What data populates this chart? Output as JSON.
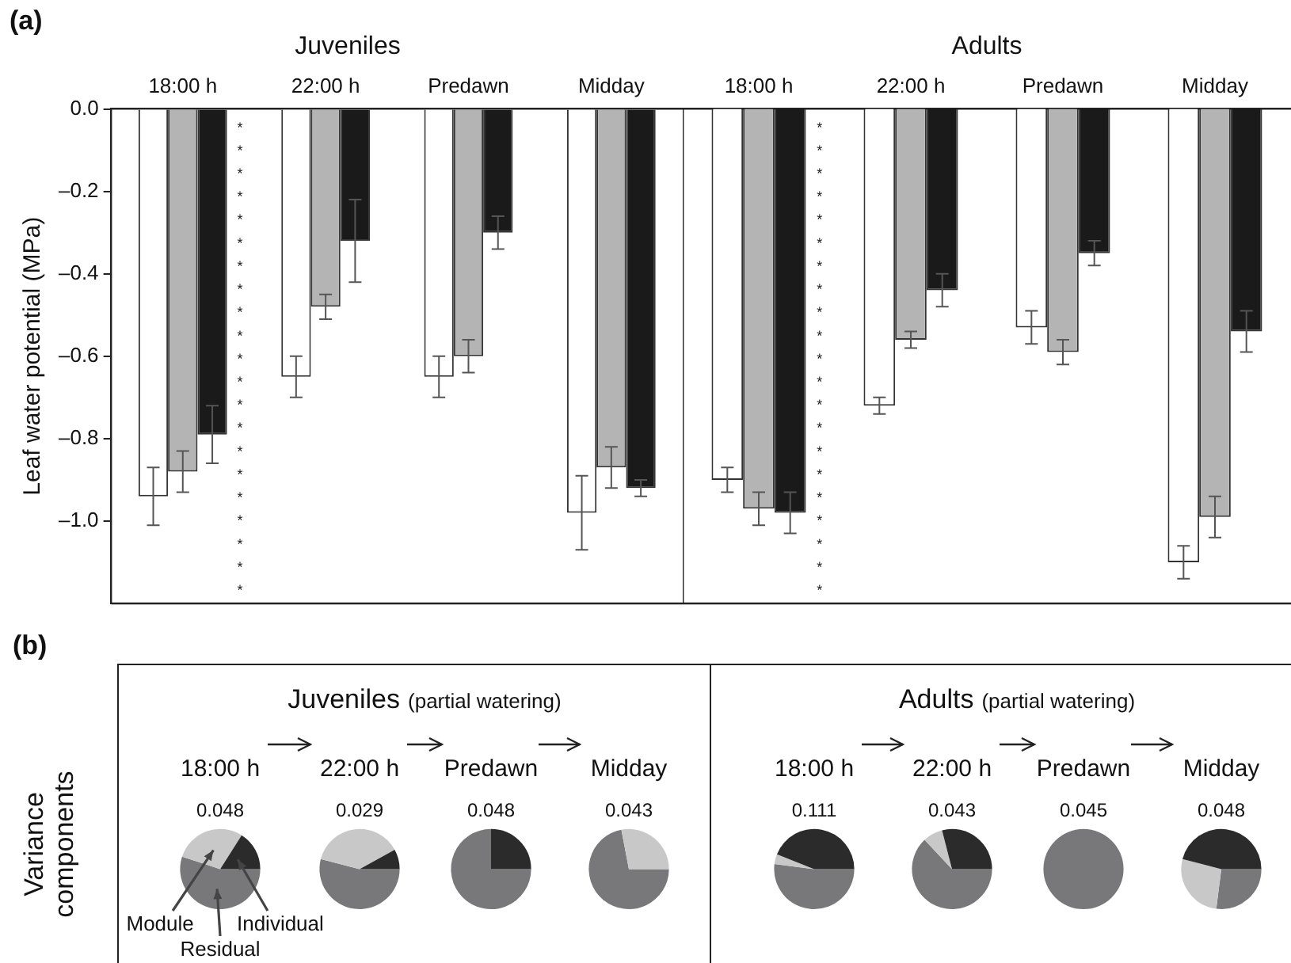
{
  "chart_data": [
    {
      "type": "bar",
      "title": "Juveniles",
      "ylabel": "Leaf water potential (MPa)",
      "categories": [
        "18:00 h",
        "22:00 h",
        "Predawn",
        "Midday"
      ],
      "series": [
        {
          "color": "#ffffff",
          "values": [
            -0.94,
            -0.65,
            -0.65,
            -0.98
          ],
          "errors": [
            0.07,
            0.05,
            0.05,
            0.09
          ]
        },
        {
          "color": "#b4b4b4",
          "values": [
            -0.88,
            -0.48,
            -0.6,
            -0.87
          ],
          "errors": [
            0.05,
            0.03,
            0.04,
            0.05
          ]
        },
        {
          "color": "#1a1a1a",
          "values": [
            -0.79,
            -0.32,
            -0.3,
            -0.92
          ],
          "errors": [
            0.07,
            0.1,
            0.04,
            0.02
          ]
        }
      ],
      "ylim": [
        -1.2,
        0
      ],
      "yticks": [
        {
          "value": 0,
          "label": "0.0"
        },
        {
          "value": -0.2,
          "label": "–0.2"
        },
        {
          "value": -0.4,
          "label": "–0.4"
        },
        {
          "value": -0.6,
          "label": "–0.6"
        },
        {
          "value": -0.8,
          "label": "–0.8"
        },
        {
          "value": -1,
          "label": "–1.0"
        }
      ],
      "annotations": [
        "(a)",
        "*********************"
      ]
    },
    {
      "type": "bar",
      "title": "Adults",
      "categories": [
        "18:00 h",
        "22:00 h",
        "Predawn",
        "Midday"
      ],
      "series": [
        {
          "color": "#ffffff",
          "values": [
            -0.9,
            -0.72,
            -0.53,
            -1.1
          ],
          "errors": [
            0.03,
            0.02,
            0.04,
            0.04
          ]
        },
        {
          "color": "#b4b4b4",
          "values": [
            -0.97,
            -0.56,
            -0.59,
            -0.99
          ],
          "errors": [
            0.04,
            0.02,
            0.03,
            0.05
          ]
        },
        {
          "color": "#1a1a1a",
          "values": [
            -0.98,
            -0.44,
            -0.35,
            -0.54
          ],
          "errors": [
            0.05,
            0.04,
            0.03,
            0.05
          ]
        }
      ],
      "ylim": [
        -1.2,
        0
      ],
      "tick_labels": "x",
      "annotations": [
        "*********************"
      ]
    },
    {
      "type": "pie",
      "title": "18:00 h",
      "subtitle": "0.048",
      "categories": [
        "Residual",
        "Module",
        "Individual"
      ],
      "values": [
        55,
        29,
        16
      ],
      "colors": [
        "#78787a",
        "#c8c8c8",
        "#2b2b2b"
      ],
      "annotations": [
        "(b)",
        "Variance components",
        "Juveniles",
        "(partial watering)"
      ]
    },
    {
      "type": "pie",
      "title": "22:00 h",
      "subtitle": "0.029",
      "categories": [
        null,
        null,
        null
      ],
      "values": [
        54,
        38,
        8
      ],
      "colors": [
        "#78787a",
        "#c8c8c8",
        "#2b2b2b"
      ]
    },
    {
      "type": "pie",
      "title": "Predawn",
      "subtitle": "0.048",
      "categories": [
        null,
        null,
        null
      ],
      "values": [
        75,
        0,
        25
      ],
      "colors": [
        "#78787a",
        "#c8c8c8",
        "#2b2b2b"
      ]
    },
    {
      "type": "pie",
      "title": "Midday",
      "subtitle": "0.043",
      "categories": [
        null,
        null,
        null
      ],
      "values": [
        72,
        28,
        0
      ],
      "colors": [
        "#78787a",
        "#c8c8c8",
        "#2b2b2b"
      ]
    },
    {
      "type": "pie",
      "title": "18:00 h",
      "subtitle": "0.111",
      "categories": [
        null,
        null,
        null
      ],
      "values": [
        52,
        4,
        44
      ],
      "colors": [
        "#78787a",
        "#c8c8c8",
        "#2b2b2b"
      ],
      "annotations": [
        "Adults",
        "(partial watering)"
      ]
    },
    {
      "type": "pie",
      "title": "22:00 h",
      "subtitle": "0.043",
      "categories": [
        null,
        null,
        null
      ],
      "values": [
        63,
        8,
        29
      ],
      "colors": [
        "#78787a",
        "#c8c8c8",
        "#2b2b2b"
      ]
    },
    {
      "type": "pie",
      "title": "Predawn",
      "subtitle": "0.045",
      "categories": [
        null,
        null,
        null
      ],
      "values": [
        100,
        0,
        0
      ],
      "colors": [
        "#78787a",
        "#c8c8c8",
        "#2b2b2b"
      ]
    },
    {
      "type": "pie",
      "title": "Midday",
      "subtitle": "0.048",
      "categories": [
        null,
        null,
        null
      ],
      "values": [
        27,
        27,
        46
      ],
      "colors": [
        "#78787a",
        "#c8c8c8",
        "#2b2b2b"
      ]
    }
  ]
}
